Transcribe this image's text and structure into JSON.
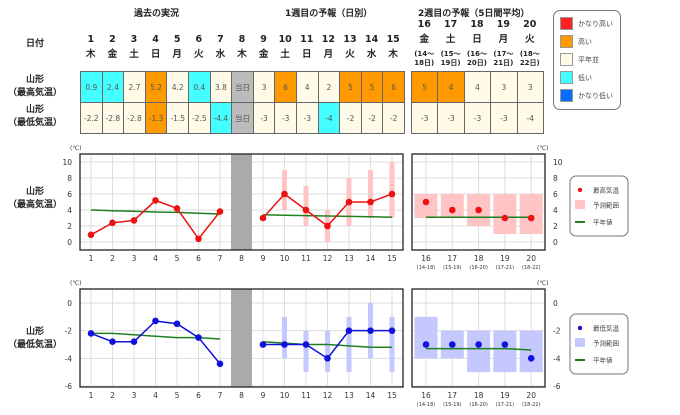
{
  "headers": {
    "past": "過去の実況",
    "week1": "1週目の予報（日別）",
    "week2": "2週目の予報（5日間平均）"
  },
  "row_labels": {
    "date": "日付",
    "high_1": "山形",
    "high_2": "（最高気温）",
    "low_1": "山形",
    "low_2": "（最低気温）"
  },
  "days": [
    {
      "d": "1",
      "w": "木"
    },
    {
      "d": "2",
      "w": "金"
    },
    {
      "d": "3",
      "w": "土"
    },
    {
      "d": "4",
      "w": "日"
    },
    {
      "d": "5",
      "w": "月"
    },
    {
      "d": "6",
      "w": "火"
    },
    {
      "d": "7",
      "w": "水"
    },
    {
      "d": "8",
      "w": "木"
    },
    {
      "d": "9",
      "w": "金"
    },
    {
      "d": "10",
      "w": "土"
    },
    {
      "d": "11",
      "w": "日"
    },
    {
      "d": "12",
      "w": "月"
    },
    {
      "d": "13",
      "w": "火"
    },
    {
      "d": "14",
      "w": "水"
    },
    {
      "d": "15",
      "w": "木"
    }
  ],
  "week2_days": [
    {
      "d": "16",
      "w": "金",
      "p1": "(14～",
      "p2": "18日)",
      "short": "(14-18)"
    },
    {
      "d": "17",
      "w": "土",
      "p1": "(15～",
      "p2": "19日)",
      "short": "(15-19)"
    },
    {
      "d": "18",
      "w": "日",
      "p1": "(16～",
      "p2": "20日)",
      "short": "(16-20)"
    },
    {
      "d": "19",
      "w": "月",
      "p1": "(17～",
      "p2": "21日)",
      "short": "(17-21)"
    },
    {
      "d": "20",
      "w": "火",
      "p1": "(18～",
      "p2": "22日)",
      "short": "(18-22)"
    }
  ],
  "table": {
    "high": [
      [
        "0.9",
        "l"
      ],
      [
        "2.4",
        "l"
      ],
      [
        "2.7",
        "n"
      ],
      [
        "5.2",
        "h"
      ],
      [
        "4.2",
        "n"
      ],
      [
        "0.4",
        "l"
      ],
      [
        "3.8",
        "n"
      ],
      [
        "当日",
        "t"
      ],
      [
        "3",
        "n"
      ],
      [
        "6",
        "h"
      ],
      [
        "4",
        "n"
      ],
      [
        "2",
        "n"
      ],
      [
        "5",
        "h"
      ],
      [
        "5",
        "h"
      ],
      [
        "6",
        "h"
      ]
    ],
    "high_week2": [
      [
        "5",
        "h"
      ],
      [
        "4",
        "h"
      ],
      [
        "4",
        "n"
      ],
      [
        "3",
        "n"
      ],
      [
        "3",
        "n"
      ]
    ],
    "low": [
      [
        "-2.2",
        "n"
      ],
      [
        "-2.8",
        "n"
      ],
      [
        "-2.8",
        "n"
      ],
      [
        "-1.3",
        "h"
      ],
      [
        "-1.5",
        "n"
      ],
      [
        "-2.5",
        "n"
      ],
      [
        "-4.4",
        "l"
      ],
      [
        "当日",
        "t"
      ],
      [
        "-3",
        "n"
      ],
      [
        "-3",
        "n"
      ],
      [
        "-3",
        "n"
      ],
      [
        "-4",
        "l"
      ],
      [
        "-2",
        "n"
      ],
      [
        "-2",
        "n"
      ],
      [
        "-2",
        "n"
      ]
    ],
    "low_week2": [
      [
        "-3",
        "n"
      ],
      [
        "-3",
        "n"
      ],
      [
        "-3",
        "n"
      ],
      [
        "-3",
        "n"
      ],
      [
        "-4",
        "n"
      ]
    ]
  },
  "class_legend": [
    {
      "label": "かなり高い",
      "color": "#ff2222"
    },
    {
      "label": "高い",
      "color": "#ff9900"
    },
    {
      "label": "平年並",
      "color": "#fffbe8"
    },
    {
      "label": "低い",
      "color": "#44ffff"
    },
    {
      "label": "かなり低い",
      "color": "#0a6cff"
    }
  ],
  "chart_data": [
    {
      "type": "line",
      "title": "山形（最高気温）",
      "ylabel": "(℃)",
      "ylim": [
        -1,
        11
      ],
      "yticks": [
        "0",
        "2",
        "4",
        "6",
        "8",
        "10"
      ],
      "x": [
        1,
        2,
        3,
        4,
        5,
        6,
        7,
        8,
        9,
        10,
        11,
        12,
        13,
        14,
        15
      ],
      "observed": [
        0.9,
        2.4,
        2.7,
        5.2,
        4.2,
        0.4,
        3.8,
        null,
        3,
        6,
        4,
        2,
        5,
        5,
        6
      ],
      "range": [
        null,
        null,
        null,
        null,
        null,
        null,
        null,
        null,
        null,
        [
          4,
          9
        ],
        [
          2,
          7
        ],
        [
          0,
          4
        ],
        [
          2,
          8
        ],
        [
          3,
          9
        ],
        [
          3,
          10
        ]
      ],
      "normal": [
        4.0,
        3.9,
        3.85,
        3.75,
        3.7,
        3.6,
        3.5,
        null,
        3.4,
        3.35,
        3.3,
        3.25,
        3.2,
        3.15,
        3.1
      ],
      "week2": {
        "x": [
          "16",
          "17",
          "18",
          "19",
          "20"
        ],
        "values": [
          5,
          4,
          4,
          3,
          3
        ],
        "range": [
          [
            3,
            6
          ],
          [
            3,
            6
          ],
          [
            2,
            6
          ],
          [
            1,
            6
          ],
          [
            1,
            6
          ]
        ],
        "normal": [
          3.1,
          3.1,
          3.1,
          3.1,
          3.1
        ]
      },
      "legend": [
        "最高気温",
        "予測範囲",
        "平年値"
      ],
      "colors": {
        "point": "#ee1111",
        "range": "#ffc4c4",
        "normal": "#208020"
      }
    },
    {
      "type": "line",
      "title": "山形（最低気温）",
      "ylabel": "(℃)",
      "ylim": [
        -6,
        1
      ],
      "yticks": [
        "0",
        "-2",
        "-4",
        "-6"
      ],
      "x": [
        1,
        2,
        3,
        4,
        5,
        6,
        7,
        8,
        9,
        10,
        11,
        12,
        13,
        14,
        15
      ],
      "observed": [
        -2.2,
        -2.8,
        -2.8,
        -1.3,
        -1.5,
        -2.5,
        -4.4,
        null,
        -3,
        -3,
        -3,
        -4,
        -2,
        -2,
        -2
      ],
      "range": [
        null,
        null,
        null,
        null,
        null,
        null,
        null,
        null,
        null,
        [
          -4,
          -1
        ],
        [
          -5,
          -2
        ],
        [
          -5,
          -2
        ],
        [
          -5,
          -1
        ],
        [
          -4,
          0
        ],
        [
          -5,
          -1
        ]
      ],
      "normal": [
        -2.2,
        -2.2,
        -2.3,
        -2.4,
        -2.5,
        -2.5,
        -2.6,
        null,
        -2.8,
        -2.9,
        -3.0,
        -3.0,
        -3.1,
        -3.2,
        -3.2
      ],
      "week2": {
        "x": [
          "16",
          "17",
          "18",
          "19",
          "20"
        ],
        "values": [
          -3,
          -3,
          -3,
          -3,
          -4
        ],
        "range": [
          [
            -4,
            -1
          ],
          [
            -4,
            -2
          ],
          [
            -5,
            -2
          ],
          [
            -5,
            -2
          ],
          [
            -5,
            -2
          ]
        ],
        "normal": [
          -3.3,
          -3.3,
          -3.3,
          -3.3,
          -3.4
        ]
      },
      "legend": [
        "最低気温",
        "予測範囲",
        "平年値"
      ],
      "colors": {
        "point": "#1111dd",
        "range": "#c4c8ff",
        "normal": "#208020"
      }
    }
  ]
}
